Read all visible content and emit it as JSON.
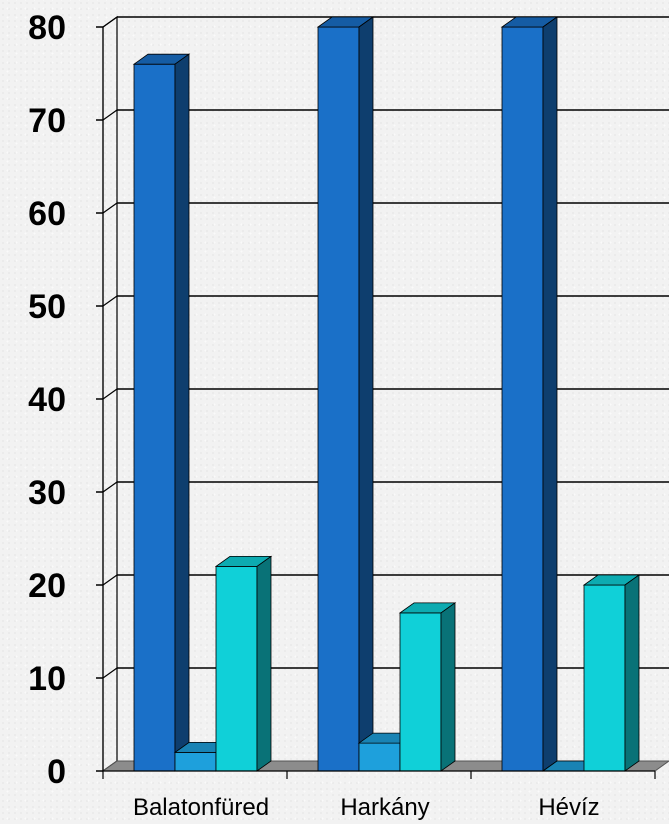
{
  "chart_data": {
    "type": "bar",
    "categories": [
      "Balatonfüred",
      "Harkány",
      "Hévíz"
    ],
    "series": [
      {
        "values": [
          76,
          80,
          80
        ],
        "color": "#1a70c8"
      },
      {
        "values": [
          2,
          3,
          0
        ],
        "color": "#1ea0dc"
      },
      {
        "values": [
          22,
          17,
          20
        ],
        "color": "#10d0d8"
      }
    ],
    "ylim": [
      0,
      80
    ],
    "yticks": [
      0,
      10,
      20,
      30,
      40,
      50,
      60,
      70,
      80
    ],
    "grid": true,
    "style": "3d-clustered-column"
  }
}
